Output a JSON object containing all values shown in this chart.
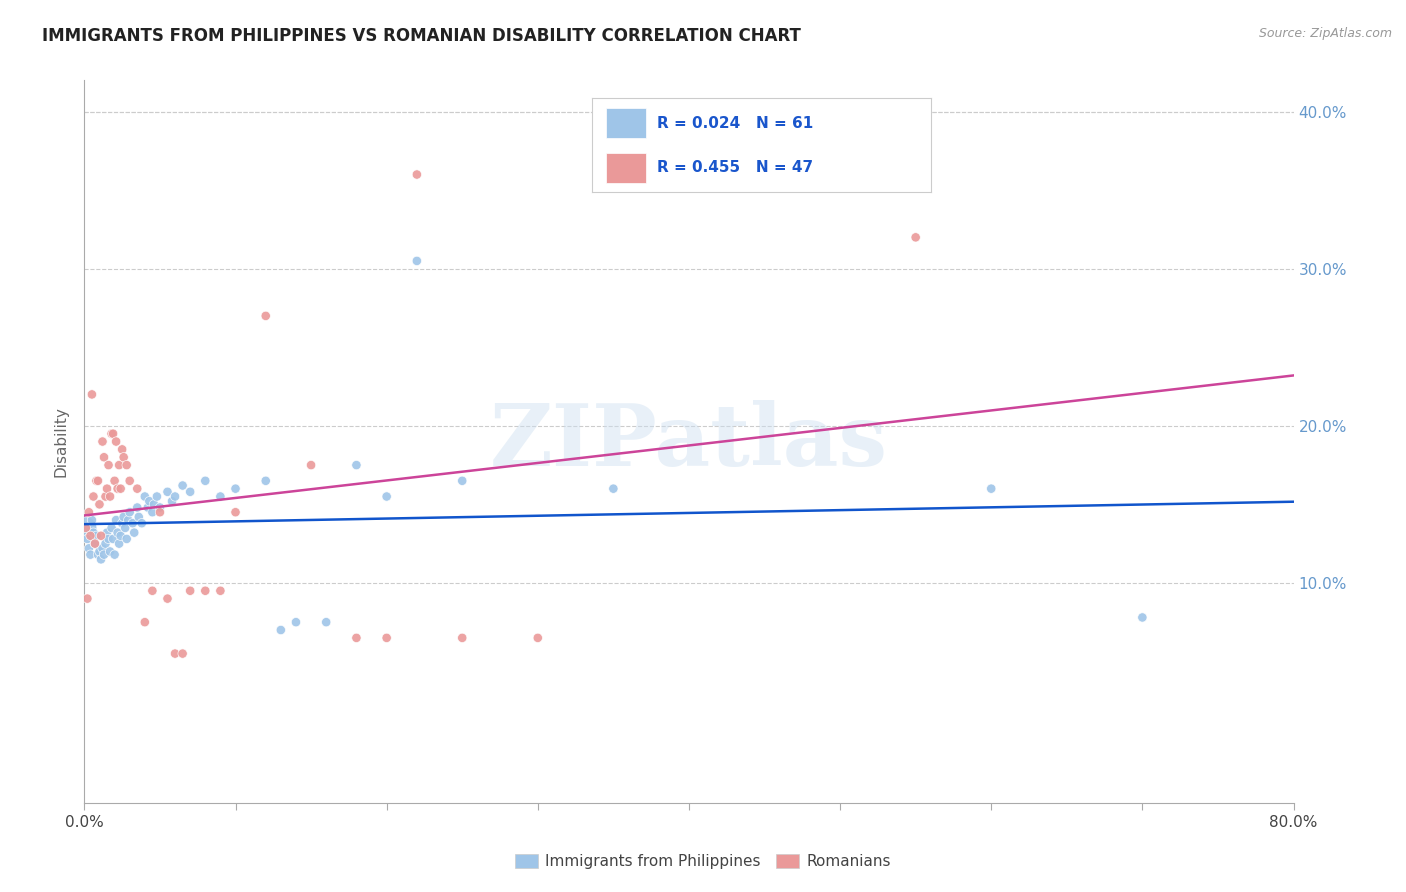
{
  "title": "IMMIGRANTS FROM PHILIPPINES VS ROMANIAN DISABILITY CORRELATION CHART",
  "source": "Source: ZipAtlas.com",
  "ylabel": "Disability",
  "legend_label1": "Immigrants from Philippines",
  "legend_label2": "Romanians",
  "legend_R1": "R = 0.024",
  "legend_N1": "N = 61",
  "legend_R2": "R = 0.455",
  "legend_N2": "N = 47",
  "color_blue": "#9fc5e8",
  "color_pink": "#ea9999",
  "color_line_blue": "#1155cc",
  "color_line_pink": "#cc4499",
  "watermark": "ZIPatlas",
  "xlim": [
    0.0,
    0.8
  ],
  "ylim": [
    -0.04,
    0.42
  ],
  "ytick_positions": [
    0.0,
    0.1,
    0.2,
    0.3,
    0.4
  ],
  "ytick_labels": [
    "",
    "10.0%",
    "20.0%",
    "30.0%",
    "40.0%"
  ],
  "xtick_positions": [
    0.0,
    0.1,
    0.2,
    0.3,
    0.4,
    0.5,
    0.6,
    0.7,
    0.8
  ],
  "blue_points": [
    [
      0.001,
      0.135
    ],
    [
      0.002,
      0.128
    ],
    [
      0.003,
      0.122
    ],
    [
      0.004,
      0.118
    ],
    [
      0.005,
      0.14
    ],
    [
      0.006,
      0.132
    ],
    [
      0.007,
      0.125
    ],
    [
      0.008,
      0.13
    ],
    [
      0.009,
      0.118
    ],
    [
      0.01,
      0.12
    ],
    [
      0.011,
      0.115
    ],
    [
      0.012,
      0.122
    ],
    [
      0.013,
      0.118
    ],
    [
      0.014,
      0.125
    ],
    [
      0.015,
      0.132
    ],
    [
      0.016,
      0.128
    ],
    [
      0.017,
      0.12
    ],
    [
      0.018,
      0.135
    ],
    [
      0.019,
      0.128
    ],
    [
      0.02,
      0.118
    ],
    [
      0.021,
      0.14
    ],
    [
      0.022,
      0.132
    ],
    [
      0.023,
      0.125
    ],
    [
      0.024,
      0.13
    ],
    [
      0.025,
      0.138
    ],
    [
      0.026,
      0.142
    ],
    [
      0.027,
      0.135
    ],
    [
      0.028,
      0.128
    ],
    [
      0.029,
      0.14
    ],
    [
      0.03,
      0.145
    ],
    [
      0.032,
      0.138
    ],
    [
      0.033,
      0.132
    ],
    [
      0.035,
      0.148
    ],
    [
      0.036,
      0.142
    ],
    [
      0.038,
      0.138
    ],
    [
      0.04,
      0.155
    ],
    [
      0.042,
      0.148
    ],
    [
      0.043,
      0.152
    ],
    [
      0.045,
      0.145
    ],
    [
      0.046,
      0.15
    ],
    [
      0.048,
      0.155
    ],
    [
      0.05,
      0.148
    ],
    [
      0.055,
      0.158
    ],
    [
      0.058,
      0.152
    ],
    [
      0.06,
      0.155
    ],
    [
      0.065,
      0.162
    ],
    [
      0.07,
      0.158
    ],
    [
      0.08,
      0.165
    ],
    [
      0.09,
      0.155
    ],
    [
      0.1,
      0.16
    ],
    [
      0.12,
      0.165
    ],
    [
      0.13,
      0.07
    ],
    [
      0.14,
      0.075
    ],
    [
      0.16,
      0.075
    ],
    [
      0.18,
      0.175
    ],
    [
      0.2,
      0.155
    ],
    [
      0.22,
      0.305
    ],
    [
      0.25,
      0.165
    ],
    [
      0.35,
      0.16
    ],
    [
      0.6,
      0.16
    ],
    [
      0.7,
      0.078
    ]
  ],
  "blue_sizes_special": [
    [
      0,
      250
    ]
  ],
  "pink_points": [
    [
      0.001,
      0.135
    ],
    [
      0.002,
      0.09
    ],
    [
      0.003,
      0.145
    ],
    [
      0.004,
      0.13
    ],
    [
      0.005,
      0.22
    ],
    [
      0.006,
      0.155
    ],
    [
      0.007,
      0.125
    ],
    [
      0.008,
      0.165
    ],
    [
      0.009,
      0.165
    ],
    [
      0.01,
      0.15
    ],
    [
      0.011,
      0.13
    ],
    [
      0.012,
      0.19
    ],
    [
      0.013,
      0.18
    ],
    [
      0.014,
      0.155
    ],
    [
      0.015,
      0.16
    ],
    [
      0.016,
      0.175
    ],
    [
      0.017,
      0.155
    ],
    [
      0.018,
      0.195
    ],
    [
      0.019,
      0.195
    ],
    [
      0.02,
      0.165
    ],
    [
      0.021,
      0.19
    ],
    [
      0.022,
      0.16
    ],
    [
      0.023,
      0.175
    ],
    [
      0.024,
      0.16
    ],
    [
      0.025,
      0.185
    ],
    [
      0.026,
      0.18
    ],
    [
      0.028,
      0.175
    ],
    [
      0.03,
      0.165
    ],
    [
      0.035,
      0.16
    ],
    [
      0.04,
      0.075
    ],
    [
      0.045,
      0.095
    ],
    [
      0.05,
      0.145
    ],
    [
      0.055,
      0.09
    ],
    [
      0.06,
      0.055
    ],
    [
      0.065,
      0.055
    ],
    [
      0.07,
      0.095
    ],
    [
      0.08,
      0.095
    ],
    [
      0.09,
      0.095
    ],
    [
      0.1,
      0.145
    ],
    [
      0.12,
      0.27
    ],
    [
      0.15,
      0.175
    ],
    [
      0.18,
      0.065
    ],
    [
      0.2,
      0.065
    ],
    [
      0.22,
      0.36
    ],
    [
      0.25,
      0.065
    ],
    [
      0.3,
      0.065
    ],
    [
      0.55,
      0.32
    ]
  ]
}
